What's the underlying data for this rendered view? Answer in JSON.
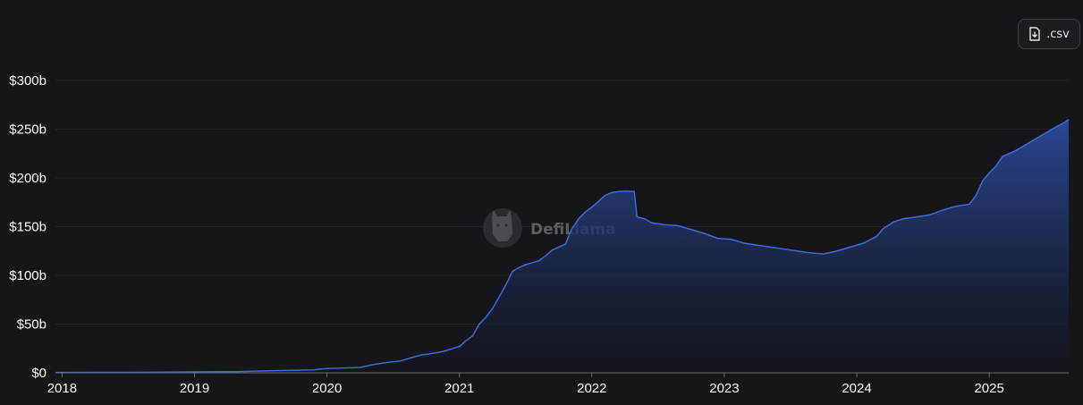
{
  "toolbar": {
    "csv_label": ".csv",
    "csv_icon": "file-download-icon"
  },
  "watermark": {
    "text": "DefiLlama",
    "icon": "llama-logo-icon"
  },
  "colors": {
    "background": "#151619",
    "line": "#3f6ad8",
    "area_top": "#2b4a9c",
    "area_bottom": "#12141c",
    "grid": "#22242a",
    "axis": "#6b6e76"
  },
  "chart_data": {
    "type": "area",
    "title": "",
    "xlabel": "",
    "ylabel": "",
    "ylim": [
      0,
      310
    ],
    "y_unit": "billions USD",
    "grid": "horizontal",
    "legend": "none",
    "y_ticks": [
      {
        "value": 0,
        "label": "$0"
      },
      {
        "value": 50,
        "label": "$50b"
      },
      {
        "value": 100,
        "label": "$100b"
      },
      {
        "value": 150,
        "label": "$150b"
      },
      {
        "value": 200,
        "label": "$200b"
      },
      {
        "value": 250,
        "label": "$250b"
      },
      {
        "value": 300,
        "label": "$300b"
      }
    ],
    "x_ticks": [
      {
        "value": 2018.0,
        "label": "2018"
      },
      {
        "value": 2019.0,
        "label": "2019"
      },
      {
        "value": 2020.0,
        "label": "2020"
      },
      {
        "value": 2021.0,
        "label": "2021"
      },
      {
        "value": 2022.0,
        "label": "2022"
      },
      {
        "value": 2023.0,
        "label": "2023"
      },
      {
        "value": 2024.0,
        "label": "2024"
      },
      {
        "value": 2025.0,
        "label": "2025"
      }
    ],
    "xlim": [
      2017.95,
      2025.6
    ],
    "series": [
      {
        "points": [
          [
            2017.95,
            0.3
          ],
          [
            2018.3,
            0.4
          ],
          [
            2018.7,
            0.6
          ],
          [
            2019.0,
            0.9
          ],
          [
            2019.3,
            1.2
          ],
          [
            2019.6,
            2.2
          ],
          [
            2019.9,
            3.0
          ],
          [
            2020.0,
            4.5
          ],
          [
            2020.15,
            5.0
          ],
          [
            2020.25,
            5.5
          ],
          [
            2020.35,
            8.5
          ],
          [
            2020.45,
            10.5
          ],
          [
            2020.55,
            12.0
          ],
          [
            2020.65,
            16.0
          ],
          [
            2020.72,
            18.5
          ],
          [
            2020.8,
            20.0
          ],
          [
            2020.88,
            22.0
          ],
          [
            2020.95,
            25.0
          ],
          [
            2021.0,
            27.0
          ],
          [
            2021.05,
            33.0
          ],
          [
            2021.1,
            38.0
          ],
          [
            2021.15,
            50.0
          ],
          [
            2021.2,
            57.0
          ],
          [
            2021.25,
            66.0
          ],
          [
            2021.3,
            78.0
          ],
          [
            2021.35,
            90.0
          ],
          [
            2021.4,
            104.0
          ],
          [
            2021.45,
            108.0
          ],
          [
            2021.5,
            111.0
          ],
          [
            2021.55,
            113.0
          ],
          [
            2021.6,
            115.0
          ],
          [
            2021.65,
            120.0
          ],
          [
            2021.7,
            126.0
          ],
          [
            2021.75,
            129.0
          ],
          [
            2021.8,
            132.0
          ],
          [
            2021.85,
            148.0
          ],
          [
            2021.9,
            158.0
          ],
          [
            2021.95,
            165.0
          ],
          [
            2022.0,
            170.0
          ],
          [
            2022.05,
            176.0
          ],
          [
            2022.1,
            182.0
          ],
          [
            2022.15,
            185.0
          ],
          [
            2022.2,
            186.0
          ],
          [
            2022.25,
            186.5
          ],
          [
            2022.32,
            186.0
          ],
          [
            2022.34,
            160.0
          ],
          [
            2022.4,
            158.0
          ],
          [
            2022.45,
            154.0
          ],
          [
            2022.55,
            152.0
          ],
          [
            2022.65,
            151.0
          ],
          [
            2022.75,
            147.0
          ],
          [
            2022.85,
            143.0
          ],
          [
            2022.95,
            138.0
          ],
          [
            2023.05,
            137.0
          ],
          [
            2023.15,
            133.0
          ],
          [
            2023.25,
            131.0
          ],
          [
            2023.35,
            129.0
          ],
          [
            2023.45,
            127.0
          ],
          [
            2023.55,
            125.0
          ],
          [
            2023.65,
            123.0
          ],
          [
            2023.75,
            122.0
          ],
          [
            2023.85,
            125.0
          ],
          [
            2023.95,
            129.0
          ],
          [
            2024.05,
            133.0
          ],
          [
            2024.15,
            140.0
          ],
          [
            2024.2,
            148.0
          ],
          [
            2024.28,
            155.0
          ],
          [
            2024.35,
            158.0
          ],
          [
            2024.45,
            160.0
          ],
          [
            2024.55,
            162.0
          ],
          [
            2024.65,
            167.0
          ],
          [
            2024.75,
            171.0
          ],
          [
            2024.85,
            173.0
          ],
          [
            2024.9,
            182.0
          ],
          [
            2024.95,
            197.0
          ],
          [
            2025.0,
            205.0
          ],
          [
            2025.05,
            212.0
          ],
          [
            2025.1,
            222.0
          ],
          [
            2025.2,
            228.0
          ],
          [
            2025.3,
            236.0
          ],
          [
            2025.4,
            244.0
          ],
          [
            2025.5,
            252.0
          ],
          [
            2025.57,
            257.0
          ],
          [
            2025.6,
            260.0
          ]
        ]
      }
    ]
  }
}
